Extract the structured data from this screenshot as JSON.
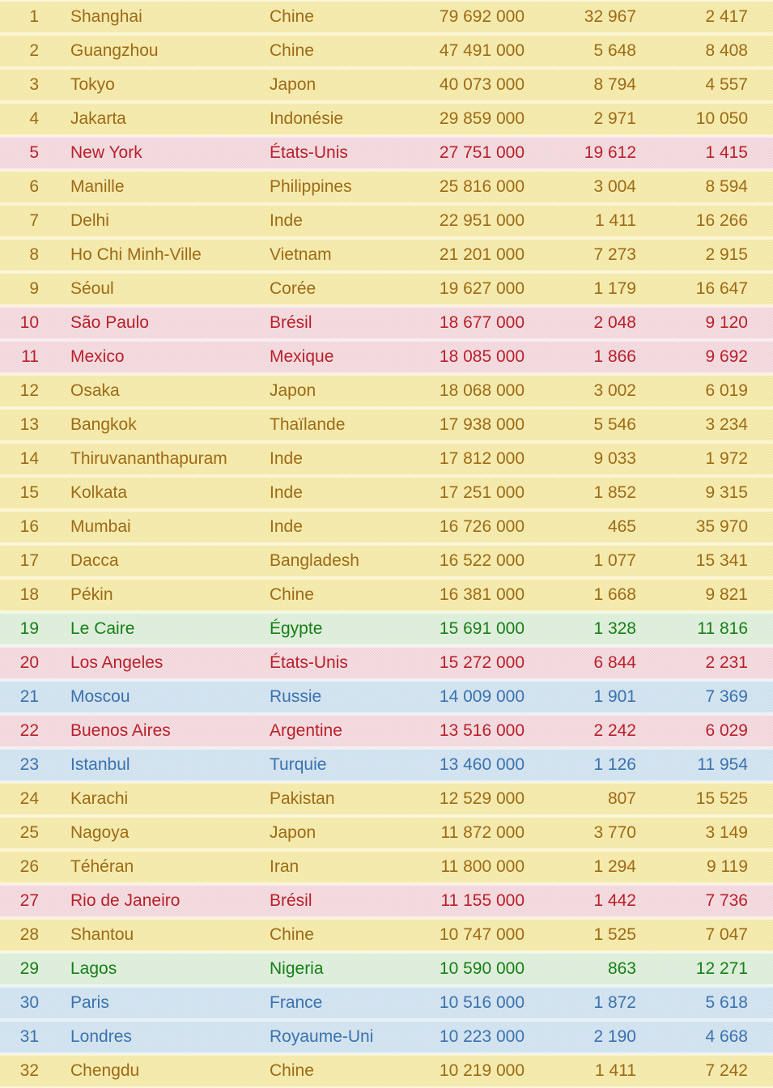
{
  "chart_data": {
    "type": "table",
    "title": "",
    "headers": [],
    "rows": [
      {
        "rank": "1",
        "city": "Shanghai",
        "country": "Chine",
        "population": "79 692 000",
        "area": "32 967",
        "density": "2 417",
        "theme": "yellow"
      },
      {
        "rank": "2",
        "city": "Guangzhou",
        "country": "Chine",
        "population": "47 491 000",
        "area": "5 648",
        "density": "8 408",
        "theme": "yellow"
      },
      {
        "rank": "3",
        "city": "Tokyo",
        "country": "Japon",
        "population": "40 073 000",
        "area": "8 794",
        "density": "4 557",
        "theme": "yellow"
      },
      {
        "rank": "4",
        "city": "Jakarta",
        "country": "Indonésie",
        "population": "29 859 000",
        "area": "2 971",
        "density": "10 050",
        "theme": "yellow"
      },
      {
        "rank": "5",
        "city": "New York",
        "country": "États-Unis",
        "population": "27 751 000",
        "area": "19 612",
        "density": "1 415",
        "theme": "pink"
      },
      {
        "rank": "6",
        "city": "Manille",
        "country": "Philippines",
        "population": "25 816 000",
        "area": "3 004",
        "density": "8 594",
        "theme": "yellow"
      },
      {
        "rank": "7",
        "city": "Delhi",
        "country": "Inde",
        "population": "22 951 000",
        "area": "1 411",
        "density": "16 266",
        "theme": "yellow"
      },
      {
        "rank": "8",
        "city": "Ho Chi Minh-Ville",
        "country": "Vietnam",
        "population": "21 201 000",
        "area": "7 273",
        "density": "2 915",
        "theme": "yellow"
      },
      {
        "rank": "9",
        "city": "Séoul",
        "country": "Corée",
        "population": "19 627 000",
        "area": "1 179",
        "density": "16 647",
        "theme": "yellow"
      },
      {
        "rank": "10",
        "city": "São Paulo",
        "country": "Brésil",
        "population": "18 677 000",
        "area": "2 048",
        "density": "9 120",
        "theme": "pink"
      },
      {
        "rank": "11",
        "city": "Mexico",
        "country": "Mexique",
        "population": "18 085 000",
        "area": "1 866",
        "density": "9 692",
        "theme": "pink"
      },
      {
        "rank": "12",
        "city": "Osaka",
        "country": "Japon",
        "population": "18 068 000",
        "area": "3 002",
        "density": "6 019",
        "theme": "yellow"
      },
      {
        "rank": "13",
        "city": "Bangkok",
        "country": "Thaïlande",
        "population": "17 938 000",
        "area": "5 546",
        "density": "3 234",
        "theme": "yellow"
      },
      {
        "rank": "14",
        "city": "Thiruvananthapuram",
        "country": "Inde",
        "population": "17 812 000",
        "area": "9 033",
        "density": "1 972",
        "theme": "yellow"
      },
      {
        "rank": "15",
        "city": "Kolkata",
        "country": "Inde",
        "population": "17 251 000",
        "area": "1 852",
        "density": "9 315",
        "theme": "yellow"
      },
      {
        "rank": "16",
        "city": "Mumbai",
        "country": "Inde",
        "population": "16 726 000",
        "area": "465",
        "density": "35 970",
        "theme": "yellow"
      },
      {
        "rank": "17",
        "city": "Dacca",
        "country": "Bangladesh",
        "population": "16 522 000",
        "area": "1 077",
        "density": "15 341",
        "theme": "yellow"
      },
      {
        "rank": "18",
        "city": "Pékin",
        "country": "Chine",
        "population": "16 381 000",
        "area": "1 668",
        "density": "9 821",
        "theme": "yellow"
      },
      {
        "rank": "19",
        "city": "Le Caire",
        "country": "Égypte",
        "population": "15 691 000",
        "area": "1 328",
        "density": "11 816",
        "theme": "green"
      },
      {
        "rank": "20",
        "city": "Los Angeles",
        "country": "États-Unis",
        "population": "15 272 000",
        "area": "6 844",
        "density": "2 231",
        "theme": "pink"
      },
      {
        "rank": "21",
        "city": "Moscou",
        "country": "Russie",
        "population": "14 009 000",
        "area": "1 901",
        "density": "7 369",
        "theme": "blue"
      },
      {
        "rank": "22",
        "city": "Buenos Aires",
        "country": "Argentine",
        "population": "13 516 000",
        "area": "2 242",
        "density": "6 029",
        "theme": "pink"
      },
      {
        "rank": "23",
        "city": "Istanbul",
        "country": "Turquie",
        "population": "13 460 000",
        "area": "1 126",
        "density": "11 954",
        "theme": "blue"
      },
      {
        "rank": "24",
        "city": "Karachi",
        "country": "Pakistan",
        "population": "12 529 000",
        "area": "807",
        "density": "15 525",
        "theme": "yellow"
      },
      {
        "rank": "25",
        "city": "Nagoya",
        "country": "Japon",
        "population": "11 872 000",
        "area": "3 770",
        "density": "3 149",
        "theme": "yellow"
      },
      {
        "rank": "26",
        "city": "Téhéran",
        "country": "Iran",
        "population": "11 800 000",
        "area": "1 294",
        "density": "9 119",
        "theme": "yellow"
      },
      {
        "rank": "27",
        "city": "Rio de Janeiro",
        "country": "Brésil",
        "population": "11 155 000",
        "area": "1 442",
        "density": "7 736",
        "theme": "pink"
      },
      {
        "rank": "28",
        "city": "Shantou",
        "country": "Chine",
        "population": "10 747 000",
        "area": "1 525",
        "density": "7 047",
        "theme": "yellow"
      },
      {
        "rank": "29",
        "city": "Lagos",
        "country": "Nigeria",
        "population": "10 590 000",
        "area": "863",
        "density": "12 271",
        "theme": "green"
      },
      {
        "rank": "30",
        "city": "Paris",
        "country": "France",
        "population": "10 516 000",
        "area": "1 872",
        "density": "5 618",
        "theme": "blue"
      },
      {
        "rank": "31",
        "city": "Londres",
        "country": "Royaume-Uni",
        "population": "10 223 000",
        "area": "2 190",
        "density": "4 668",
        "theme": "blue"
      },
      {
        "rank": "32",
        "city": "Chengdu",
        "country": "Chine",
        "population": "10 219 000",
        "area": "1 411",
        "density": "7 242",
        "theme": "yellow"
      }
    ]
  },
  "colors": {
    "themes": {
      "yellow": {
        "dither_light": "#F9F1BE",
        "dither_dark": "#EFE29A",
        "text": "#9D6A16",
        "separator": "#FBF5D7"
      },
      "pink": {
        "dither_light": "#F7E4E7",
        "dither_dark": "#EDCFD5",
        "text": "#B9202A",
        "separator": "#FAEDEF"
      },
      "green": {
        "dither_light": "#E6F3E3",
        "dither_dark": "#D5E9D2",
        "text": "#177F17",
        "separator": "#F0F8EE"
      },
      "blue": {
        "dither_light": "#DCE9F3",
        "dither_dark": "#C8DCEC",
        "text": "#3A72AE",
        "separator": "#EAF2F8"
      }
    }
  }
}
